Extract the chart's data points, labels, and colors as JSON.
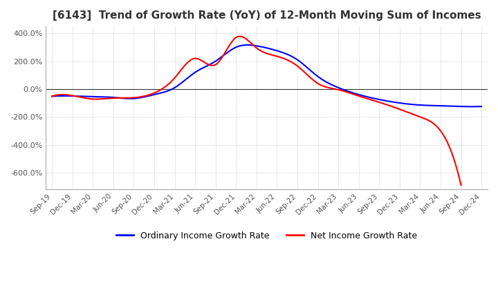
{
  "title": "[6143]  Trend of Growth Rate (YoY) of 12-Month Moving Sum of Incomes",
  "title_fontsize": 11,
  "ordinary_color": "#0000FF",
  "net_color": "#FF0000",
  "background_color": "#FFFFFF",
  "grid_color": "#AAAAAA",
  "zero_line_color": "#333333",
  "ylim": [
    -720,
    450
  ],
  "yticks": [
    400,
    200,
    0,
    -200,
    -400,
    -600
  ],
  "legend_labels": [
    "Ordinary Income Growth Rate",
    "Net Income Growth Rate"
  ],
  "x_labels": [
    "Sep-19",
    "Dec-19",
    "Mar-20",
    "Jun-20",
    "Sep-20",
    "Dec-20",
    "Mar-21",
    "Jun-21",
    "Sep-21",
    "Dec-21",
    "Mar-22",
    "Jun-22",
    "Sep-22",
    "Dec-22",
    "Mar-23",
    "Jun-23",
    "Sep-23",
    "Dec-23",
    "Mar-24",
    "Jun-24",
    "Sep-24",
    "Dec-24"
  ],
  "ordinary_income_growth": [
    -52,
    -50,
    -55,
    -60,
    -68,
    -40,
    10,
    120,
    200,
    300,
    310,
    275,
    210,
    90,
    10,
    -40,
    -75,
    -100,
    -115,
    -120,
    -125,
    -125
  ],
  "net_income_growth": [
    -52,
    -47,
    -72,
    -65,
    -62,
    -28,
    80,
    220,
    175,
    370,
    295,
    235,
    165,
    40,
    -5,
    -50,
    -95,
    -145,
    -200,
    -300,
    -690,
    null
  ]
}
